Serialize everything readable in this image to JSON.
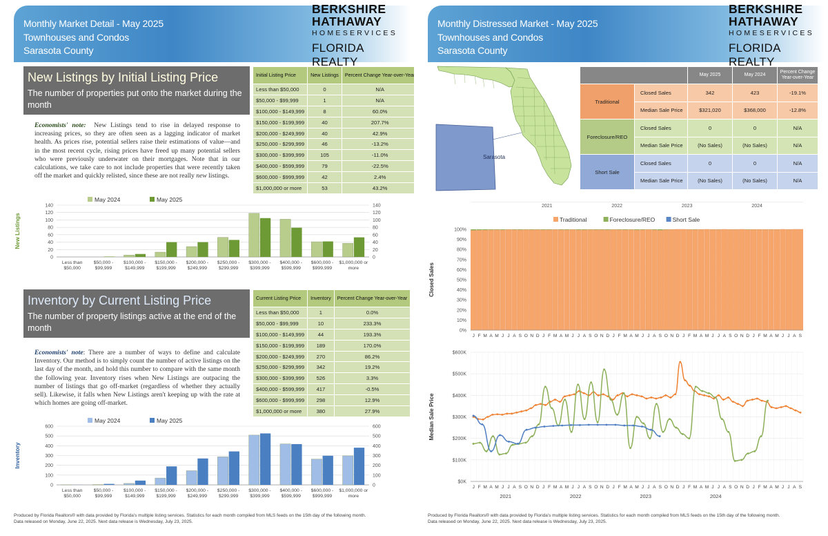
{
  "left": {
    "header": {
      "line1": "Monthly Market Detail - May 2025",
      "line2": "Townhouses and Condos",
      "line3": "Sarasota County"
    },
    "brand": {
      "line1": "BERKSHIRE",
      "line2": "HATHAWAY",
      "line3": "HOMESERVICES",
      "line4": "FLORIDA REALTY"
    },
    "newlistings": {
      "title": "New Listings by Initial Listing Price",
      "subtitle": "The number of properties put onto the market during the month",
      "note_label": "Economists' note:",
      "note_text": "New Listings tend to rise in delayed response to increasing prices, so they are often seen as a lagging indicator of market health. As prices rise, potential sellers raise their estimations of value—and in the most recent cycle, rising prices have freed up many potential sellers who were previously underwater on their mortgages. Note that in our calculations, we take care to not include properties that were recently taken off the market and quickly relisted, since these are not really ",
      "note_italic": "new",
      "note_end": " listings.",
      "table_headers": [
        "Initial Listing Price",
        "New Listings",
        "Percent Change Year-over-Year"
      ],
      "rows": [
        [
          "Less than $50,000",
          "0",
          "N/A"
        ],
        [
          "$50,000 - $99,999",
          "1",
          "N/A"
        ],
        [
          "$100,000 - $149,999",
          "8",
          "60.0%"
        ],
        [
          "$150,000 - $199,999",
          "40",
          "207.7%"
        ],
        [
          "$200,000 - $249,999",
          "40",
          "42.9%"
        ],
        [
          "$250,000 - $299,999",
          "46",
          "-13.2%"
        ],
        [
          "$300,000 - $399,999",
          "105",
          "-11.0%"
        ],
        [
          "$400,000 - $599,999",
          "79",
          "-22.5%"
        ],
        [
          "$600,000 - $999,999",
          "42",
          "2.4%"
        ],
        [
          "$1,000,000 or more",
          "53",
          "43.2%"
        ]
      ]
    },
    "inventory": {
      "title": "Inventory by Current Listing Price",
      "subtitle": "The number of property listings active at the end of the month",
      "note_label": "Economists' note",
      "note_text": ": There are a number of ways to define and calculate Inventory. Our method is to simply count the number of active listings on the last day of the month, and hold this number to compare with the same month the following year. Inventory rises when New Listings are outpacing the number of listings that go off-market (regardless of whether they actually sell). Likewise, it falls when New Listings aren't keeping up with the rate at which homes are going off-market.",
      "table_headers": [
        "Current Listing Price",
        "Inventory",
        "Percent Change Year-over-Year"
      ],
      "rows": [
        [
          "Less than $50,000",
          "1",
          "0.0%"
        ],
        [
          "$50,000 - $99,999",
          "10",
          "233.3%"
        ],
        [
          "$100,000 - $149,999",
          "44",
          "193.3%"
        ],
        [
          "$150,000 - $199,999",
          "189",
          "170.0%"
        ],
        [
          "$200,000 - $249,999",
          "270",
          "86.2%"
        ],
        [
          "$250,000 - $299,999",
          "342",
          "19.2%"
        ],
        [
          "$300,000 - $399,999",
          "526",
          "3.3%"
        ],
        [
          "$400,000 - $599,999",
          "417",
          "-0.5%"
        ],
        [
          "$600,000 - $999,999",
          "298",
          "12.9%"
        ],
        [
          "$1,000,000 or more",
          "380",
          "27.9%"
        ]
      ]
    },
    "footer": {
      "line1": "Produced by Florida Realtors® with data provided by Florida's multiple listing services. Statistics for each month compiled from MLS feeds on the 15th day of the following month.",
      "line2": "Data released on Monday, June 22, 2025. Next data release is Wednesday, July 23, 2025."
    }
  },
  "right": {
    "header": {
      "line1": "Monthly Distressed Market - May 2025",
      "line2": "Townhouses and Condos",
      "line3": "Sarasota County"
    },
    "brand": {
      "line1": "BERKSHIRE",
      "line2": "HATHAWAY",
      "line3": "HOMESERVICES",
      "line4": "FLORIDA REALTY"
    },
    "map": {
      "label": "Sarasota",
      "colors": {
        "land": "#c8e39c",
        "county": "#7f99cc"
      }
    },
    "table": {
      "headers": [
        "May 2025",
        "May 2024",
        "Percent Change Year-over-Year"
      ],
      "groups": [
        {
          "name": "Traditional",
          "rows": [
            [
              "Closed Sales",
              "342",
              "423",
              "-19.1%"
            ],
            [
              "Median Sale Price",
              "$321,020",
              "$368,000",
              "-12.8%"
            ]
          ]
        },
        {
          "name": "Foreclosure/REO",
          "rows": [
            [
              "Closed Sales",
              "0",
              "0",
              "N/A"
            ],
            [
              "Median Sale Price",
              "(No Sales)",
              "(No Sales)",
              "N/A"
            ]
          ]
        },
        {
          "name": "Short Sale",
          "rows": [
            [
              "Closed Sales",
              "0",
              "0",
              "N/A"
            ],
            [
              "Median Sale Price",
              "(No Sales)",
              "(No Sales)",
              "N/A"
            ]
          ]
        }
      ]
    },
    "footer": {
      "line1": "Produced by Florida Realtors® with data provided by Florida's multiple listing services. Statistics for each month compiled from MLS feeds on the 15th day of the following month.",
      "line2": "Data released on Monday, June 22, 2025. Next data release is Wednesday, July 23, 2025."
    }
  },
  "chart_data": [
    {
      "type": "bar",
      "ylabel": "New Listings",
      "categories": [
        "Less than $50,000",
        "$50,000 - $99,999",
        "$100,000 - $149,999",
        "$150,000 - $199,999",
        "$200,000 - $249,999",
        "$250,000 - $299,999",
        "$300,000 - $399,999",
        "$400,000 - $599,999",
        "$600,000 - $999,999",
        "$1,000,000 or more"
      ],
      "series": [
        {
          "name": "May 2024",
          "color": "#b8cc8c",
          "values": [
            0,
            0,
            5,
            13,
            28,
            53,
            118,
            102,
            41,
            37
          ]
        },
        {
          "name": "May 2025",
          "color": "#6d9a34",
          "values": [
            0,
            1,
            8,
            40,
            40,
            46,
            105,
            79,
            42,
            53
          ]
        }
      ],
      "ylim": [
        0,
        140
      ],
      "yticks": [
        0,
        20,
        40,
        60,
        80,
        100,
        120,
        140
      ],
      "legend": "top-center",
      "grid": true
    },
    {
      "type": "bar",
      "ylabel": "Inventory",
      "categories": [
        "Less than $50,000",
        "$50,000 - $99,999",
        "$100,000 - $149,999",
        "$150,000 - $199,999",
        "$200,000 - $249,999",
        "$250,000 - $299,999",
        "$300,000 - $399,999",
        "$400,000 - $599,999",
        "$600,000 - $999,999",
        "$1,000,000 or more"
      ],
      "series": [
        {
          "name": "May 2024",
          "color": "#9fbde6",
          "values": [
            1,
            3,
            15,
            70,
            145,
            287,
            509,
            419,
            264,
            297
          ]
        },
        {
          "name": "May 2025",
          "color": "#4a7fc1",
          "values": [
            1,
            10,
            44,
            189,
            270,
            342,
            526,
            417,
            298,
            380
          ]
        }
      ],
      "ylim": [
        0,
        600
      ],
      "yticks": [
        0,
        100,
        200,
        300,
        400,
        500,
        600
      ],
      "legend": "top-center",
      "grid": true
    },
    {
      "type": "bar",
      "stacked": "percent",
      "ylabel": "Closed Sales",
      "years": [
        "2021",
        "2022",
        "2023",
        "2024"
      ],
      "month_letters": [
        "J",
        "F",
        "M",
        "A",
        "M",
        "J",
        "J",
        "A",
        "S",
        "O",
        "N",
        "D"
      ],
      "series": [
        {
          "name": "Traditional",
          "color": "#f6a56b"
        },
        {
          "name": "Foreclosure/REO",
          "color": "#8fb05b"
        },
        {
          "name": "Short Sale",
          "color": "#5a86c8"
        }
      ],
      "traditional_share_pct": [
        99.0,
        99.2,
        99.3,
        99.5,
        99.6,
        99.4,
        99.8,
        99.6,
        99.5,
        99.7,
        99.6,
        99.7,
        99.5,
        99.6,
        99.8,
        99.6,
        99.5,
        99.8,
        99.4,
        99.5,
        99.7,
        99.6,
        99.6,
        99.5,
        99.8,
        99.6,
        99.5,
        99.7,
        99.4,
        99.6,
        99.8,
        99.5,
        99.2,
        99.7,
        99.9,
        100,
        100,
        99.8,
        99.7,
        99.9,
        100,
        99.9,
        99.8,
        100,
        99.9,
        99.9,
        100,
        99.8,
        99.9,
        99.9,
        99.9,
        99.8,
        99.9,
        100,
        99.9,
        100,
        100
      ],
      "yticks": [
        "0%",
        "10%",
        "20%",
        "30%",
        "40%",
        "50%",
        "60%",
        "70%",
        "80%",
        "90%",
        "100%"
      ],
      "legend": "top-center",
      "grid": true
    },
    {
      "type": "line",
      "ylabel": "Median Sale Price",
      "years": [
        "2021",
        "2022",
        "2023",
        "2024"
      ],
      "month_letters": [
        "J",
        "F",
        "M",
        "A",
        "M",
        "J",
        "J",
        "A",
        "S",
        "O",
        "N",
        "D"
      ],
      "yticks": [
        "$0K",
        "$100K",
        "$200K",
        "$300K",
        "$400K",
        "$500K",
        "$600K"
      ],
      "ylim": [
        0,
        600000
      ],
      "series": [
        {
          "name": "Traditional",
          "color": "#ef8233",
          "values": [
            300000,
            290000,
            288000,
            300000,
            310000,
            312000,
            310000,
            315000,
            315000,
            320000,
            325000,
            330000,
            340000,
            355000,
            360000,
            355000,
            370000,
            380000,
            370000,
            395000,
            400000,
            405000,
            420000,
            410000,
            400000,
            415000,
            400000,
            405000,
            395000,
            380000,
            400000,
            410000,
            395000,
            405000,
            400000,
            395000,
            385000,
            390000,
            385000,
            390000,
            400000,
            390000,
            405000,
            555000,
            470000,
            445000,
            420000,
            405000,
            400000,
            395000,
            385000,
            400000,
            380000,
            390000,
            370000,
            360000,
            350000,
            375000,
            380000,
            385000,
            375000,
            370000,
            345000,
            340000,
            345000,
            350000,
            340000,
            330000,
            320000
          ]
        },
        {
          "name": "Foreclosure/REO",
          "color": "#8db05a",
          "values": [
            175000,
            180000,
            140000,
            210000,
            125000,
            130000,
            170000,
            175000,
            180000,
            210000,
            265000,
            440000,
            340000,
            260000,
            380000,
            230000,
            450000,
            290000,
            460000,
            275000,
            520000,
            380000,
            310000,
            410000,
            155000,
            300000,
            270000,
            200000,
            360000,
            230000,
            290000,
            250000,
            220000,
            200000,
            440000,
            420000,
            410000,
            390000,
            290000,
            230000,
            95000,
            100000,
            130000,
            140000,
            210000,
            375000
          ]
        },
        {
          "name": "Short Sale",
          "color": "#4f7fc2",
          "values": [
            305000,
            265000,
            140000,
            215000,
            185000,
            175000,
            240000,
            250000,
            255000,
            258000,
            260000,
            262000,
            262000,
            263000,
            263000,
            263000,
            263000,
            260000,
            260000,
            255000,
            240000,
            210000
          ]
        }
      ],
      "grid": true
    }
  ]
}
